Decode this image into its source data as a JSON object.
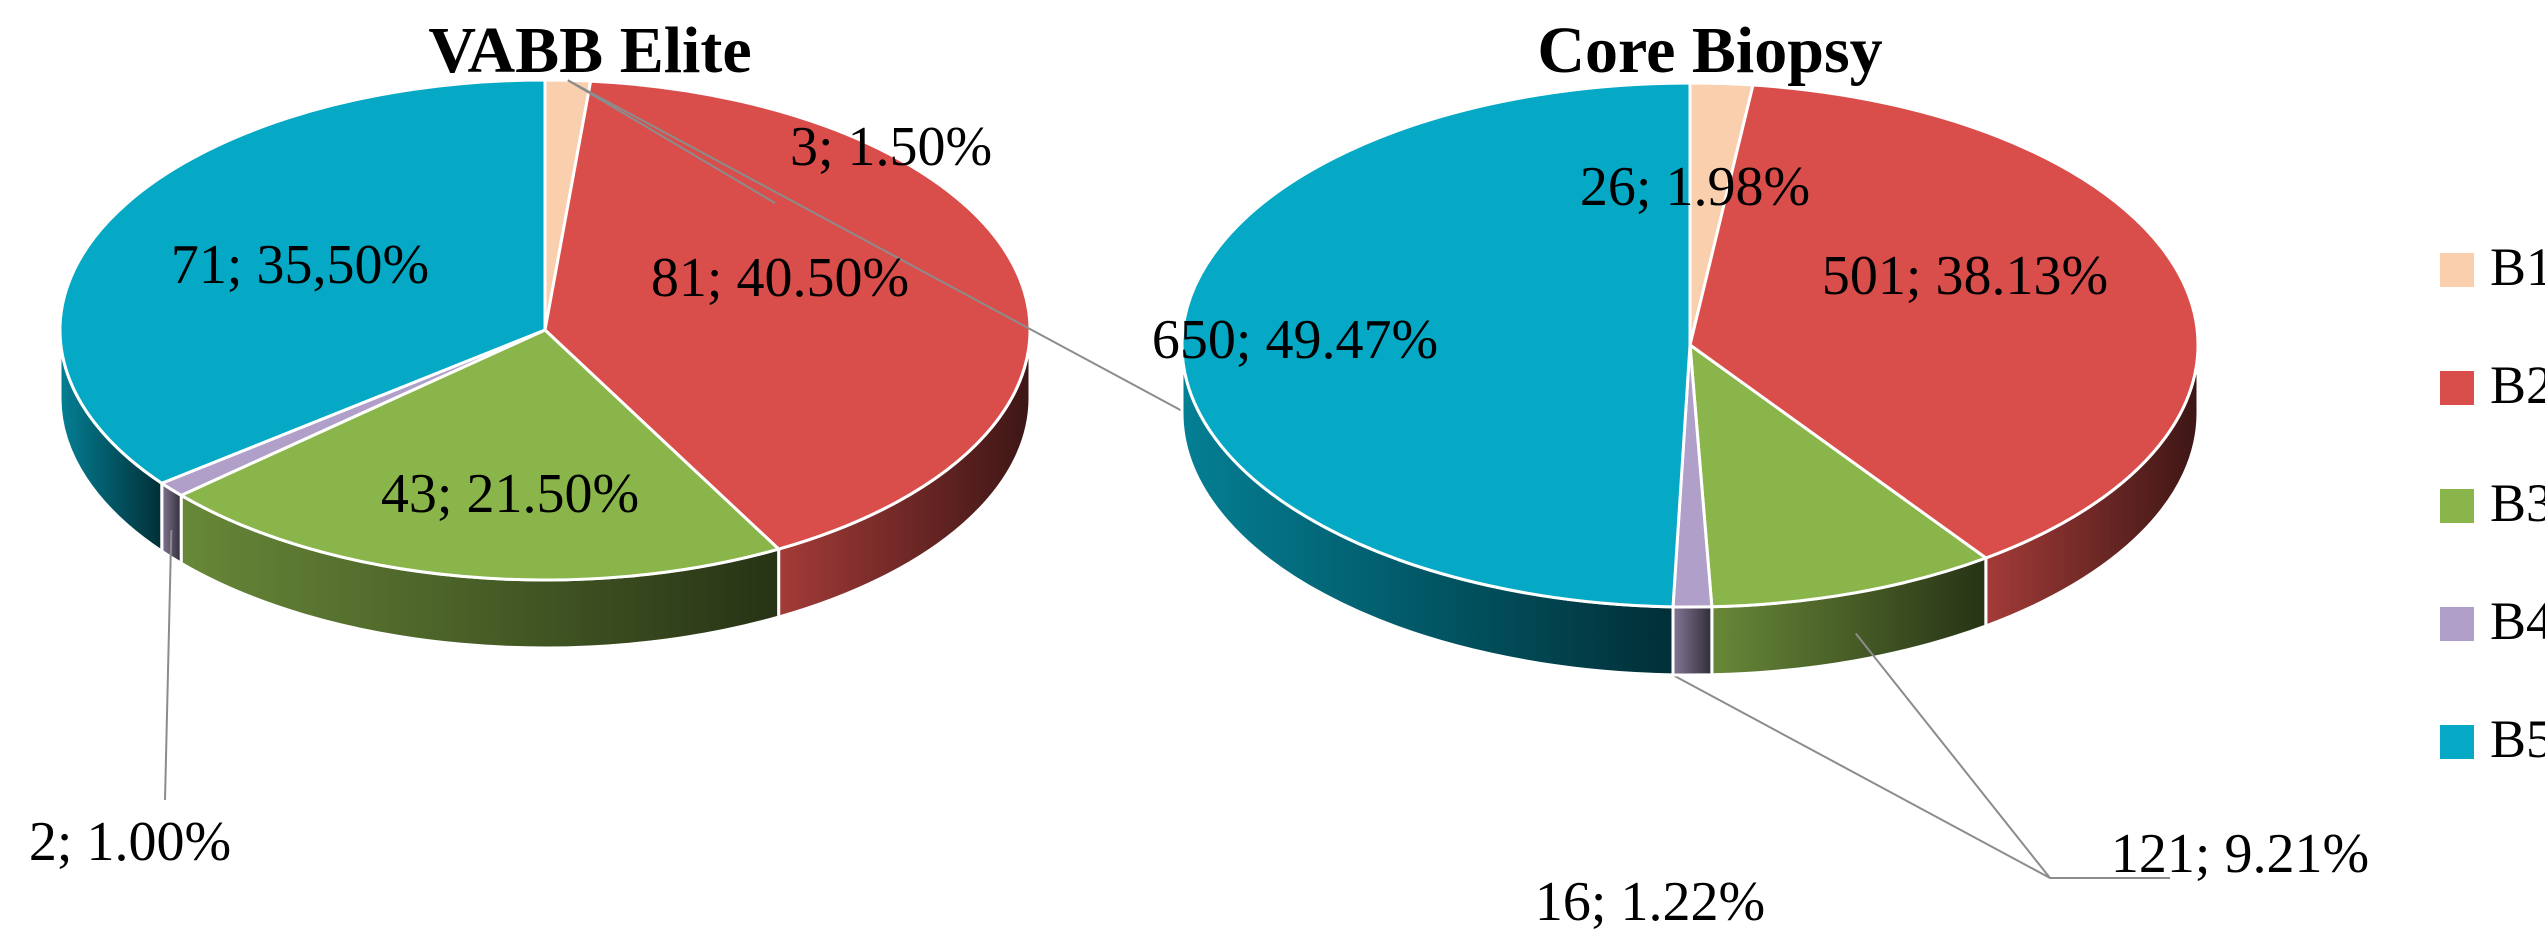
{
  "chart_data": [
    {
      "type": "pie",
      "title": "VABB Elite",
      "categories": [
        "B1",
        "B2",
        "B3",
        "B4",
        "B5"
      ],
      "values": [
        3,
        81,
        43,
        2,
        71
      ],
      "labels": [
        "3; 1.50%",
        "81; 40.50%",
        "43; 21.50%",
        "2; 1.00%",
        "71; 35,50%"
      ],
      "style": "3d"
    },
    {
      "type": "pie",
      "title": "Core Biopsy",
      "categories": [
        "B1",
        "B2",
        "B3",
        "B4",
        "B5"
      ],
      "values": [
        26,
        501,
        121,
        16,
        650
      ],
      "labels": [
        "26; 1.98%",
        "501; 38.13%",
        "121; 9.21%",
        "16; 1.22%",
        "650; 49.47%"
      ],
      "style": "3d"
    }
  ],
  "legend": {
    "placement": "right",
    "items": [
      {
        "label": "B1",
        "color": "#f9cfae"
      },
      {
        "label": "B2",
        "color": "#d94e4b"
      },
      {
        "label": "B3",
        "color": "#8ab54a"
      },
      {
        "label": "B4",
        "color": "#b09fc8"
      },
      {
        "label": "B5",
        "color": "#05a9c5"
      }
    ]
  }
}
